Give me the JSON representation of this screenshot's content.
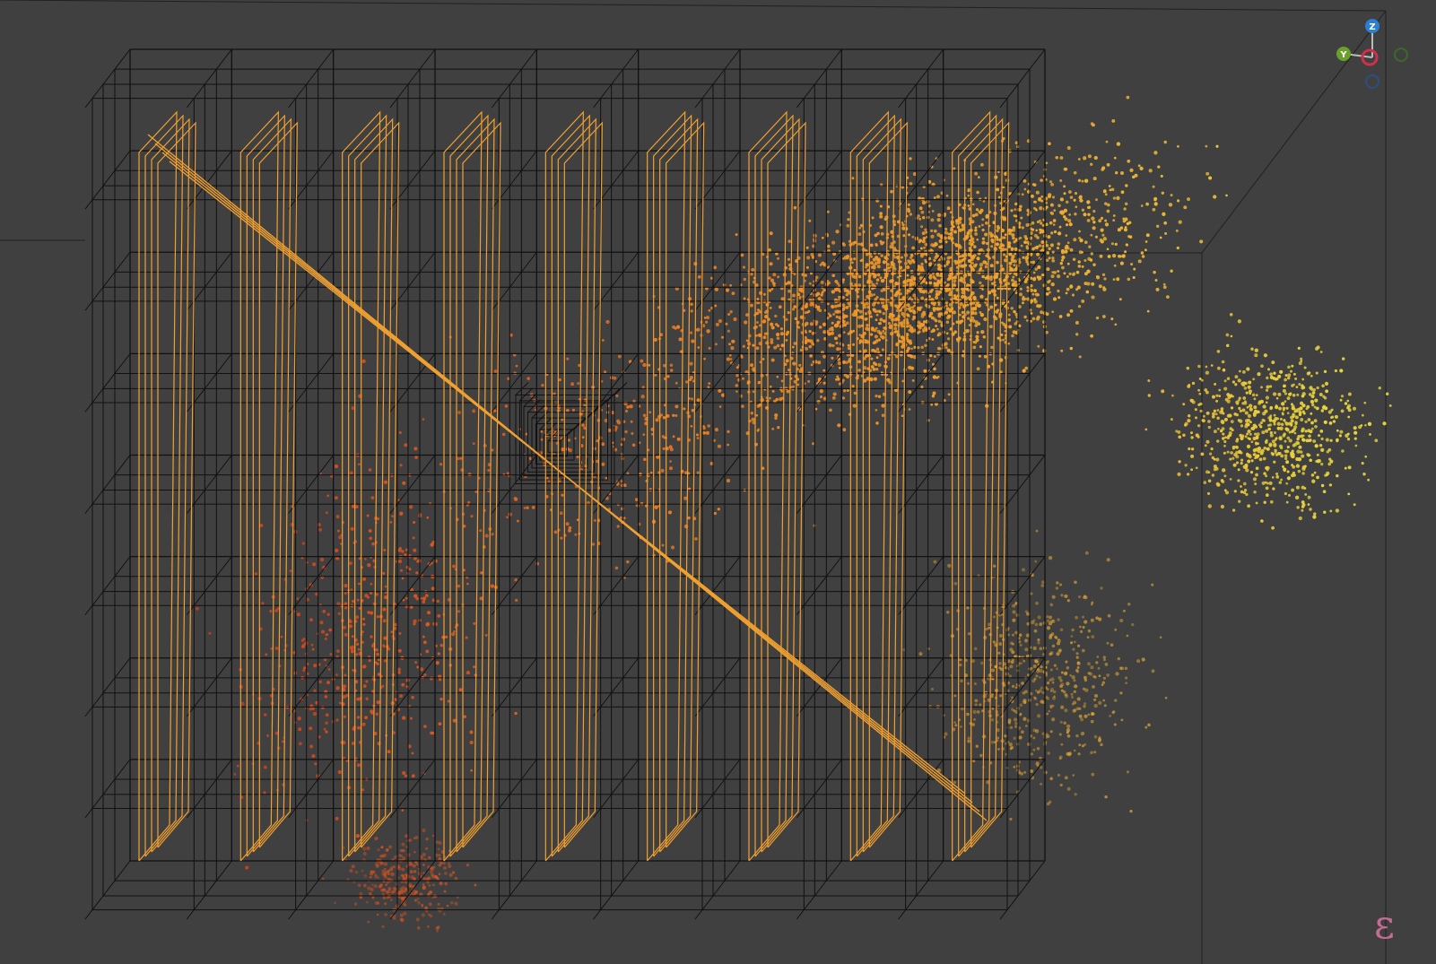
{
  "viewport": {
    "background": "#404040",
    "grid_color": "#111111",
    "spiral_color": "#f0a030",
    "boundary_line_color": "#202020"
  },
  "scene": {
    "cells_x": 9,
    "cells_y": 8,
    "sawtooth_teeth_per_column": 4,
    "point_gradient": [
      "#c03020",
      "#e05a20",
      "#f28a24",
      "#f0b030",
      "#e8e040"
    ]
  },
  "gizmo": {
    "z_label": "Z",
    "y_label": "Y",
    "z_color": "#2a7fd4",
    "y_color": "#6aa02a",
    "x_color": "#d0304a",
    "neg_y_color": "#3a6a2a",
    "neg_z_color": "#2a5080"
  },
  "branding": {
    "glyph": "ɛ",
    "color": "#c76b93",
    "icon": "epsilon-logo-icon"
  }
}
